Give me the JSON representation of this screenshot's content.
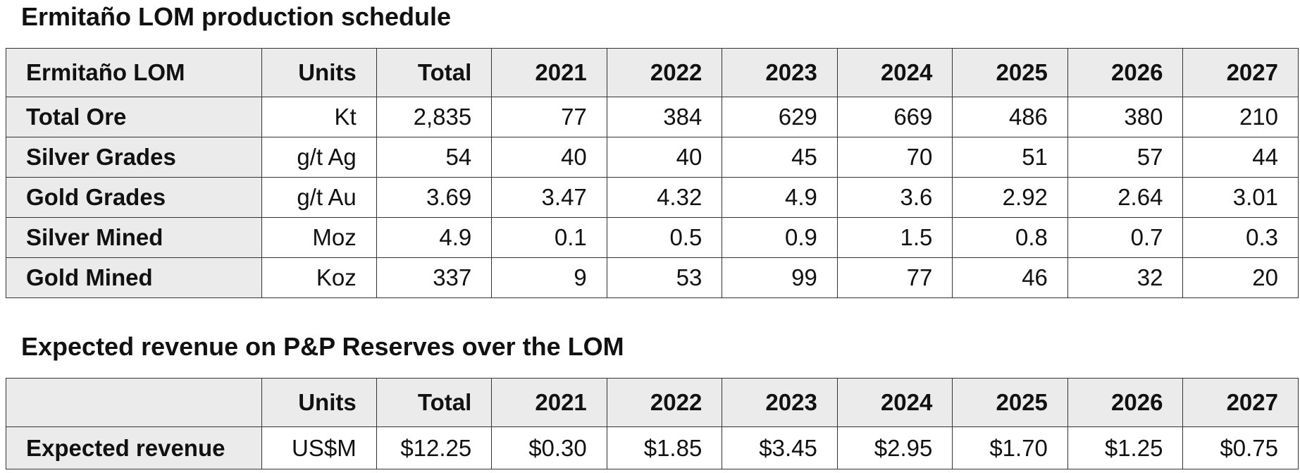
{
  "production": {
    "title": "Ermitaño LOM production schedule",
    "headers": [
      "Ermitaño LOM",
      "Units",
      "Total",
      "2021",
      "2022",
      "2023",
      "2024",
      "2025",
      "2026",
      "2027"
    ],
    "rows": [
      {
        "label": "Total Ore",
        "units": "Kt",
        "values": [
          "2,835",
          "77",
          "384",
          "629",
          "669",
          "486",
          "380",
          "210"
        ]
      },
      {
        "label": "Silver Grades",
        "units": "g/t Ag",
        "values": [
          "54",
          "40",
          "40",
          "45",
          "70",
          "51",
          "57",
          "44"
        ]
      },
      {
        "label": "Gold Grades",
        "units": "g/t Au",
        "values": [
          "3.69",
          "3.47",
          "4.32",
          "4.9",
          "3.6",
          "2.92",
          "2.64",
          "3.01"
        ]
      },
      {
        "label": "Silver Mined",
        "units": "Moz",
        "values": [
          "4.9",
          "0.1",
          "0.5",
          "0.9",
          "1.5",
          "0.8",
          "0.7",
          "0.3"
        ]
      },
      {
        "label": "Gold Mined",
        "units": "Koz",
        "values": [
          "337",
          "9",
          "53",
          "99",
          "77",
          "46",
          "32",
          "20"
        ]
      }
    ]
  },
  "revenue": {
    "title": "Expected revenue on P&P Reserves over the LOM",
    "headers": [
      "",
      "Units",
      "Total",
      "2021",
      "2022",
      "2023",
      "2024",
      "2025",
      "2026",
      "2027"
    ],
    "rows": [
      {
        "label": "Expected revenue",
        "units": "US$M",
        "values": [
          "$12.25",
          "$0.30",
          "$1.85",
          "$3.45",
          "$2.95",
          "$1.70",
          "$1.25",
          "$0.75"
        ]
      }
    ]
  },
  "colors": {
    "header_bg": "#ebebeb",
    "border": "#333333",
    "text": "#111111"
  }
}
